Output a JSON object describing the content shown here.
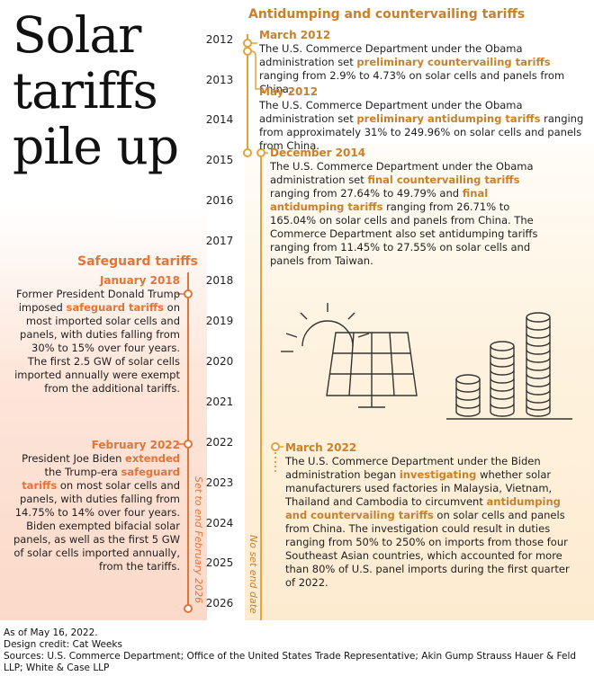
{
  "title": [
    "Solar",
    "tariffs",
    "pile up"
  ],
  "sections": {
    "antidumping": "Antidumping and countervailing tariffs",
    "safeguard": "Safeguard tariffs"
  },
  "years": [
    "2012",
    "2013",
    "2014",
    "2015",
    "2016",
    "2017",
    "2018",
    "2019",
    "2020",
    "2021",
    "2022",
    "2023",
    "2024",
    "2025",
    "2026"
  ],
  "events_right": [
    {
      "date": "March 2012",
      "pre": "The U.S. Commerce Department under the Obama administration set ",
      "hl1": "preliminary countervailing tariffs",
      "post": " ranging from 2.9% to 4.73% on solar cells and panels from China."
    },
    {
      "date": "May 2012",
      "pre": "The U.S. Commerce Department under the Obama administration set ",
      "hl1": "preliminary antidumping tariffs",
      "post": " ranging from approximately 31% to 249.96% on solar cells and panels from China."
    },
    {
      "date": "December 2014",
      "pre": "The U.S. Commerce Department under the Obama administration set ",
      "hl1": "final countervailing tariffs",
      "mid": " ranging from 27.64% to 49.79% and ",
      "hl2": "final antidumping tariffs",
      "post": " ranging from 26.71% to 165.04% on solar cells and panels from China. The Commerce Department also set antidumping tariffs ranging from 11.45% to 27.55% on solar cells and panels from Taiwan."
    },
    {
      "date": "March 2022",
      "pre": "The U.S. Commerce Department under the Biden administration began ",
      "hl1": "investigating",
      "mid": " whether solar manufacturers used factories in Malaysia, Vietnam, Thailand and Cambodia to circumvent ",
      "hl2": "antidumping and countervailing tariffs",
      "post": " on solar cells and panels from China. The investigation could result in duties ranging from 50% to 250% on imports from those four Southeast Asian countries, which accounted for more than 80% of U.S. panel imports during the first quarter of 2022."
    }
  ],
  "events_left": [
    {
      "date": "January 2018",
      "pre": "Former President Donald Trump imposed ",
      "hl1": "safeguard tariffs",
      "post": " on most imported solar cells and panels, with duties falling from 30% to 15% over four years. The first 2.5 GW of solar cells imported annually were exempt from the additional tariffs."
    },
    {
      "date": "February 2022",
      "pre": "President Joe Biden ",
      "hl1": "extended",
      "mid": " the Trump-era ",
      "hl2": "safeguard tariffs",
      "post": " on most solar cells and panels, with duties falling from 14.75% to 14% over four years. Biden exempted bifacial solar panels, as well as the first 5 GW of solar cells imported annually, from the tariffs."
    }
  ],
  "line_labels": {
    "safeguard_end": "Set to end February 2026",
    "no_end": "No set end date"
  },
  "footer": [
    "As of May 16, 2022.",
    "Design credit: Cat Weeks",
    "Sources: U.S. Commerce Department; Office of the United States Trade Representative; Akin Gump Strauss Hauer & Feld LLP; White & Case LLP"
  ],
  "colors": {
    "orange": "#e0753a",
    "gold": "#e3a23b",
    "gold_text": "#c8812a"
  },
  "icons": [
    "sun-icon",
    "solar-panel-icon",
    "coin-stacks-icon"
  ]
}
